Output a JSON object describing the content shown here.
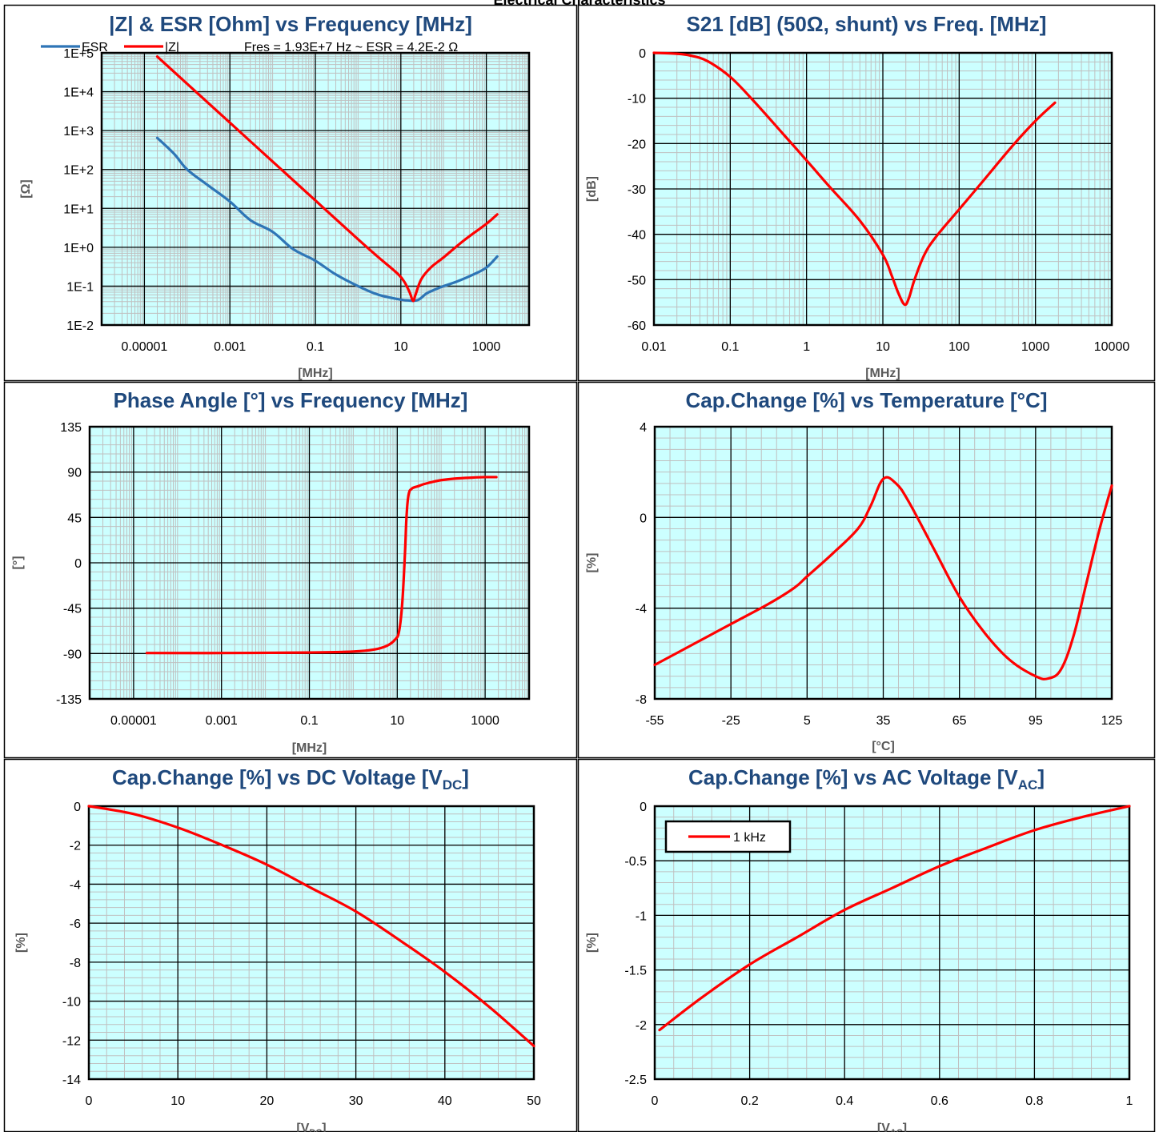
{
  "page_title": "Electrical Characteristics",
  "colors": {
    "title": "#1F497D",
    "plot_bg": "#CCFFFF",
    "minor_grid": "#C0C0C0",
    "major_grid": "#000000",
    "red_series": "#FF0000",
    "blue_series": "#2E75B6"
  },
  "chart_data": [
    {
      "type": "line",
      "title": "|Z| & ESR [Ohm] vs Frequency [MHz]",
      "xlabel": "[MHz]",
      "ylabel": "[Ω]",
      "x_scale": "log",
      "y_scale": "log",
      "xlim": [
        1e-06,
        10000
      ],
      "ylim": [
        0.01,
        100000
      ],
      "x_ticks": [
        "0.00001",
        "0.001",
        "0.1",
        "10",
        "1000"
      ],
      "y_ticks": [
        "1E-2",
        "1E-1",
        "1E+0",
        "1E+1",
        "1E+2",
        "1E+3",
        "1E+4",
        "1E+5"
      ],
      "annotation": "Fres = 1.93E+7 Hz ~ ESR = 4.2E-2 Ω",
      "legend": "top",
      "series": [
        {
          "name": "ESR",
          "color": "#2E75B6",
          "x": [
            2e-05,
            5e-05,
            0.0001,
            0.0003,
            0.001,
            0.003,
            0.01,
            0.03,
            0.1,
            0.3,
            1,
            3,
            10,
            15,
            19.3,
            25,
            30,
            40,
            60,
            100,
            200,
            500,
            1000,
            1800
          ],
          "y": [
            650,
            250,
            100,
            40,
            15,
            5,
            2.5,
            0.9,
            0.45,
            0.2,
            0.1,
            0.06,
            0.045,
            0.043,
            0.042,
            0.044,
            0.05,
            0.065,
            0.08,
            0.1,
            0.13,
            0.2,
            0.3,
            0.58
          ]
        },
        {
          "name": "|Z|",
          "color": "#FF0000",
          "x": [
            2e-05,
            0.0001,
            0.001,
            0.01,
            0.1,
            1,
            3,
            8,
            12,
            16,
            19.3,
            22,
            30,
            50,
            100,
            300,
            1000,
            1800
          ],
          "y": [
            80000,
            16000,
            1600,
            160,
            16,
            1.6,
            0.55,
            0.22,
            0.13,
            0.07,
            0.042,
            0.06,
            0.15,
            0.3,
            0.55,
            1.5,
            4,
            7
          ]
        }
      ]
    },
    {
      "type": "line",
      "title": "S21 [dB] (50Ω, shunt) vs Freq. [MHz]",
      "xlabel": "[MHz]",
      "ylabel": "[dB]",
      "x_scale": "log",
      "xlim": [
        0.01,
        10000
      ],
      "ylim": [
        -60,
        0
      ],
      "x_ticks": [
        "0.01",
        "0.1",
        "1",
        "10",
        "100",
        "1000",
        "10000"
      ],
      "y_ticks": [
        "-60",
        "-50",
        "-40",
        "-30",
        "-20",
        "-10",
        "0"
      ],
      "series": [
        {
          "color": "#FF0000",
          "x": [
            0.01,
            0.02,
            0.03,
            0.05,
            0.1,
            0.2,
            0.5,
            1,
            2,
            5,
            10,
            13,
            16,
            19.3,
            22,
            26,
            35,
            50,
            100,
            200,
            500,
            1000,
            1800
          ],
          "y": [
            0,
            -0.2,
            -0.6,
            -1.8,
            -5.3,
            -10.5,
            -18,
            -23.7,
            -29.5,
            -37,
            -44.5,
            -49,
            -53,
            -55.5,
            -54,
            -50,
            -44.5,
            -40.5,
            -34.5,
            -28.5,
            -20.5,
            -15,
            -11
          ]
        }
      ]
    },
    {
      "type": "line",
      "title": "Phase Angle [°] vs Frequency [MHz]",
      "xlabel": "[MHz]",
      "ylabel": "[°]",
      "x_scale": "log",
      "xlim": [
        1e-06,
        10000
      ],
      "ylim": [
        -135,
        135
      ],
      "x_ticks": [
        "0.00001",
        "0.001",
        "0.1",
        "10",
        "1000"
      ],
      "y_ticks": [
        "-135",
        "-90",
        "-45",
        "0",
        "45",
        "90",
        "135"
      ],
      "series": [
        {
          "color": "#FF0000",
          "x": [
            2e-05,
            0.001,
            0.1,
            1,
            3,
            6,
            9,
            11,
            13,
            15,
            16,
            17,
            18,
            19,
            20,
            21,
            22,
            25,
            30,
            40,
            60,
            100,
            200,
            500,
            1000,
            1800
          ],
          "y": [
            -89.5,
            -89.5,
            -89,
            -88,
            -86,
            -82,
            -76,
            -68,
            -40,
            10,
            40,
            58,
            67,
            71,
            72.5,
            73,
            74,
            75,
            76,
            78,
            80,
            82,
            83.5,
            84.5,
            85,
            85
          ]
        }
      ]
    },
    {
      "type": "line",
      "title": "Cap.Change [%] vs Temperature [°C]",
      "xlabel": "[°C]",
      "ylabel": "[%]",
      "xlim": [
        -55,
        125
      ],
      "ylim": [
        -8,
        4
      ],
      "x_ticks": [
        "-55",
        "-25",
        "5",
        "35",
        "65",
        "95",
        "125"
      ],
      "y_ticks": [
        "-8",
        "-4",
        "0",
        "4"
      ],
      "series": [
        {
          "color": "#FF0000",
          "x": [
            -55,
            -40,
            -25,
            -10,
            0,
            5,
            15,
            25,
            30,
            35,
            40,
            45,
            55,
            65,
            75,
            85,
            95,
            100,
            105,
            110,
            115,
            120,
            125
          ],
          "y": [
            -6.5,
            -5.6,
            -4.7,
            -3.8,
            -3.1,
            -2.6,
            -1.6,
            -0.5,
            0.5,
            1.7,
            1.5,
            0.7,
            -1.4,
            -3.5,
            -5.1,
            -6.3,
            -7.0,
            -7.1,
            -6.7,
            -5.2,
            -2.9,
            -0.6,
            1.4
          ]
        }
      ]
    },
    {
      "type": "line",
      "title_main": "Cap.Change [%] vs DC Voltage [V",
      "title_sub": "DC",
      "title_end": "]",
      "xlabel_main": "[V",
      "xlabel_sub": "DC",
      "xlabel_end": "]",
      "ylabel": "[%]",
      "xlim": [
        0,
        50
      ],
      "ylim": [
        -14,
        0
      ],
      "x_ticks": [
        "0",
        "10",
        "20",
        "30",
        "40",
        "50"
      ],
      "y_ticks": [
        "-14",
        "-12",
        "-10",
        "-8",
        "-6",
        "-4",
        "-2",
        "0"
      ],
      "series": [
        {
          "color": "#FF0000",
          "x": [
            0,
            5,
            10,
            15,
            20,
            25,
            30,
            35,
            40,
            45,
            50
          ],
          "y": [
            0,
            -0.4,
            -1.1,
            -2.0,
            -3.0,
            -4.2,
            -5.4,
            -6.9,
            -8.5,
            -10.3,
            -12.3
          ]
        }
      ]
    },
    {
      "type": "line",
      "title_main": "Cap.Change [%] vs AC Voltage [V",
      "title_sub": "AC",
      "title_end": "]",
      "xlabel_main": "[V",
      "xlabel_sub": "AC",
      "xlabel_end": "]",
      "ylabel": "[%]",
      "xlim": [
        0,
        1
      ],
      "ylim": [
        -2.5,
        0
      ],
      "x_ticks": [
        "0",
        "0.2",
        "0.4",
        "0.6",
        "0.8",
        "1"
      ],
      "y_ticks": [
        "-2.5",
        "-2",
        "-1.5",
        "-1",
        "-0.5",
        "0"
      ],
      "legend": "top-left",
      "series": [
        {
          "name": "1 kHz",
          "color": "#FF0000",
          "x": [
            0.01,
            0.1,
            0.2,
            0.3,
            0.4,
            0.5,
            0.6,
            0.7,
            0.8,
            0.9,
            1.0
          ],
          "y": [
            -2.05,
            -1.75,
            -1.45,
            -1.2,
            -0.95,
            -0.75,
            -0.55,
            -0.38,
            -0.22,
            -0.1,
            0
          ]
        }
      ]
    }
  ]
}
